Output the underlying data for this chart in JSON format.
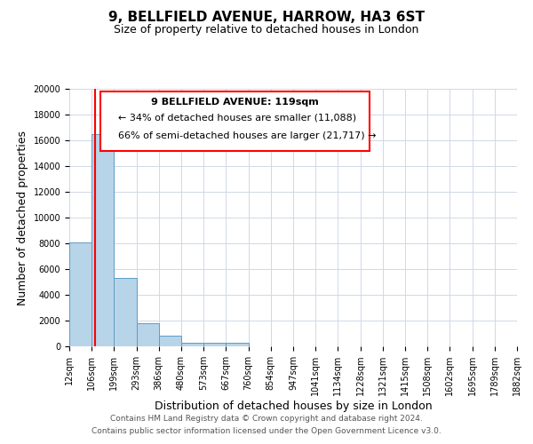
{
  "title": "9, BELLFIELD AVENUE, HARROW, HA3 6ST",
  "subtitle": "Size of property relative to detached houses in London",
  "xlabel": "Distribution of detached houses by size in London",
  "ylabel": "Number of detached properties",
  "bin_labels": [
    "12sqm",
    "106sqm",
    "199sqm",
    "293sqm",
    "386sqm",
    "480sqm",
    "573sqm",
    "667sqm",
    "760sqm",
    "854sqm",
    "947sqm",
    "1041sqm",
    "1134sqm",
    "1228sqm",
    "1321sqm",
    "1415sqm",
    "1508sqm",
    "1602sqm",
    "1695sqm",
    "1789sqm",
    "1882sqm"
  ],
  "bar_heights": [
    8050,
    16500,
    5300,
    1800,
    800,
    300,
    250,
    250,
    0,
    0,
    0,
    0,
    0,
    0,
    0,
    0,
    0,
    0,
    0,
    0
  ],
  "bar_color": "#b8d4e8",
  "bar_edge_color": "#5a9dc8",
  "ylim": [
    0,
    20000
  ],
  "yticks": [
    0,
    2000,
    4000,
    6000,
    8000,
    10000,
    12000,
    14000,
    16000,
    18000,
    20000
  ],
  "annotation_title": "9 BELLFIELD AVENUE: 119sqm",
  "annotation_line1": "← 34% of detached houses are smaller (11,088)",
  "annotation_line2": "66% of semi-detached houses are larger (21,717) →",
  "footer_line1": "Contains HM Land Registry data © Crown copyright and database right 2024.",
  "footer_line2": "Contains public sector information licensed under the Open Government Licence v3.0.",
  "background_color": "#ffffff",
  "grid_color": "#d0d8e8",
  "title_fontsize": 11,
  "subtitle_fontsize": 9,
  "axis_label_fontsize": 9,
  "tick_fontsize": 7,
  "annotation_fontsize": 8,
  "footer_fontsize": 6.5
}
